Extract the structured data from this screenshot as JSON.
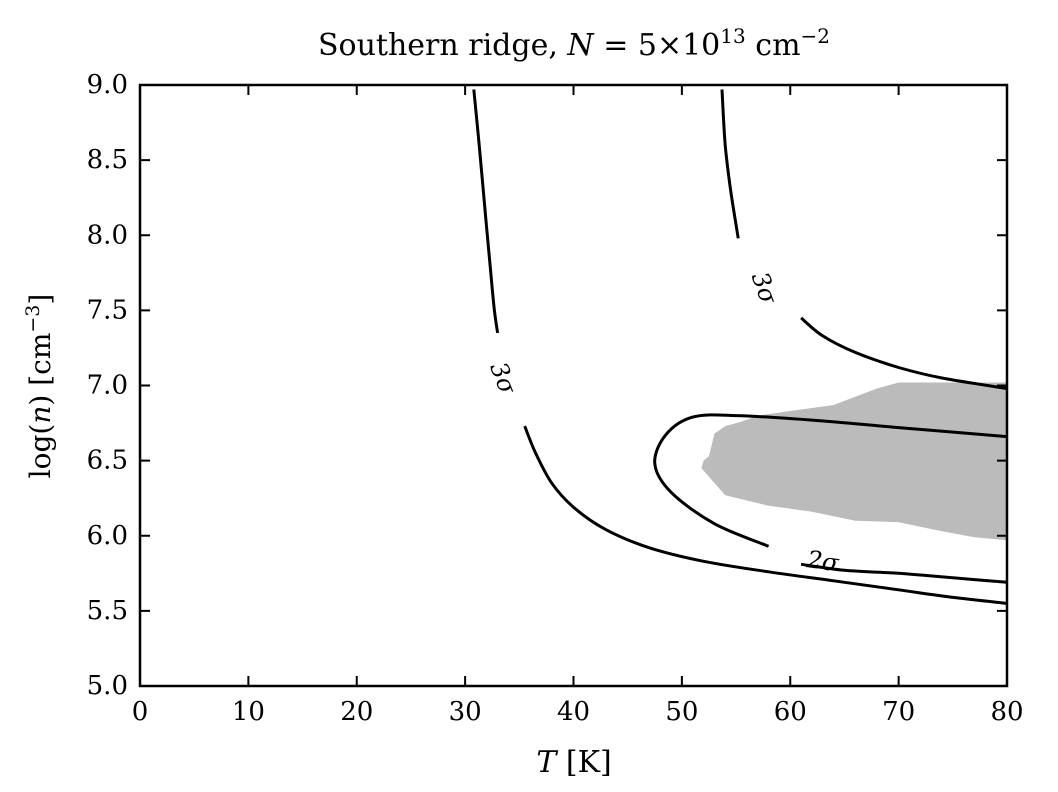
{
  "chart_data": {
    "type": "line",
    "title_main": "Southern ridge, ",
    "title_var": "N",
    "title_eq": " = 5",
    "title_times": "×",
    "title_base": "10",
    "title_exp": "13",
    "title_unit": " cm",
    "title_unit_exp": "−2",
    "xlabel_var": "T",
    "xlabel_unit": " [K]",
    "ylabel_text": "log(",
    "ylabel_var": "n",
    "ylabel_close": ") [cm",
    "ylabel_exp": "−3",
    "ylabel_end": "]",
    "xlim": [
      0,
      80
    ],
    "ylim": [
      5.0,
      9.0
    ],
    "xticks": [
      0,
      10,
      20,
      30,
      40,
      50,
      60,
      70,
      80
    ],
    "xtick_labels": [
      "0",
      "10",
      "20",
      "30",
      "40",
      "50",
      "60",
      "70",
      "80"
    ],
    "yticks": [
      5.0,
      5.5,
      6.0,
      6.5,
      7.0,
      7.5,
      8.0,
      8.5,
      9.0
    ],
    "ytick_labels": [
      "5.0",
      "5.5",
      "6.0",
      "6.5",
      "7.0",
      "7.5",
      "8.0",
      "8.5",
      "9.0"
    ],
    "grid": false,
    "colors": {
      "contour": "#000000",
      "region": "#bbbbbb",
      "axes": "#000000"
    },
    "filled_region": {
      "name": "shaded region",
      "points": [
        [
          52.5,
          6.53
        ],
        [
          53.0,
          6.68
        ],
        [
          54.0,
          6.73
        ],
        [
          55.5,
          6.76
        ],
        [
          57.0,
          6.8
        ],
        [
          60.0,
          6.83
        ],
        [
          64.0,
          6.87
        ],
        [
          68.0,
          6.98
        ],
        [
          70.0,
          7.02
        ],
        [
          80.0,
          7.02
        ],
        [
          80.0,
          5.97
        ],
        [
          77.0,
          5.99
        ],
        [
          74.0,
          6.03
        ],
        [
          70.0,
          6.09
        ],
        [
          66.0,
          6.1
        ],
        [
          62.0,
          6.16
        ],
        [
          58.0,
          6.2
        ],
        [
          54.0,
          6.27
        ],
        [
          51.8,
          6.45
        ],
        [
          52.0,
          6.5
        ]
      ]
    },
    "contours": [
      {
        "label": "3σ",
        "level": "3σ",
        "segments": [
          [
            [
              30.8,
              8.97
            ],
            [
              31.3,
              8.6
            ],
            [
              31.8,
              8.2
            ],
            [
              32.3,
              7.8
            ],
            [
              32.7,
              7.5
            ],
            [
              33.0,
              7.35
            ]
          ],
          [
            [
              35.5,
              6.73
            ],
            [
              36.5,
              6.55
            ],
            [
              38.0,
              6.35
            ],
            [
              40.0,
              6.19
            ],
            [
              43.0,
              6.04
            ],
            [
              47.0,
              5.92
            ],
            [
              52.0,
              5.83
            ],
            [
              58.0,
              5.76
            ],
            [
              64.0,
              5.7
            ],
            [
              70.0,
              5.64
            ],
            [
              75.0,
              5.59
            ],
            [
              80.0,
              5.55
            ]
          ]
        ],
        "label_at": [
          33.5,
          7.05
        ]
      },
      {
        "label": "3σ",
        "level": "3σ",
        "segments": [
          [
            [
              53.7,
              8.97
            ],
            [
              54.0,
              8.6
            ],
            [
              54.5,
              8.3
            ],
            [
              55.2,
              7.98
            ]
          ],
          [
            [
              61.0,
              7.45
            ],
            [
              63.0,
              7.33
            ],
            [
              66.0,
              7.22
            ],
            [
              70.0,
              7.12
            ],
            [
              74.0,
              7.05
            ],
            [
              80.0,
              6.98
            ]
          ]
        ],
        "label_at": [
          57.6,
          7.65
        ]
      },
      {
        "label": "2σ",
        "level": "2σ",
        "segments": [
          [
            [
              58.0,
              5.93
            ],
            [
              53.0,
              6.08
            ],
            [
              49.0,
              6.29
            ],
            [
              47.5,
              6.48
            ],
            [
              48.5,
              6.67
            ],
            [
              51.0,
              6.79
            ],
            [
              55.0,
              6.8
            ],
            [
              62.0,
              6.77
            ],
            [
              70.0,
              6.72
            ],
            [
              80.0,
              6.66
            ]
          ],
          [
            [
              61.0,
              5.81
            ],
            [
              65.0,
              5.77
            ],
            [
              70.0,
              5.75
            ],
            [
              75.0,
              5.72
            ],
            [
              80.0,
              5.69
            ]
          ]
        ],
        "label_at": [
          63.0,
          5.83
        ]
      }
    ]
  }
}
